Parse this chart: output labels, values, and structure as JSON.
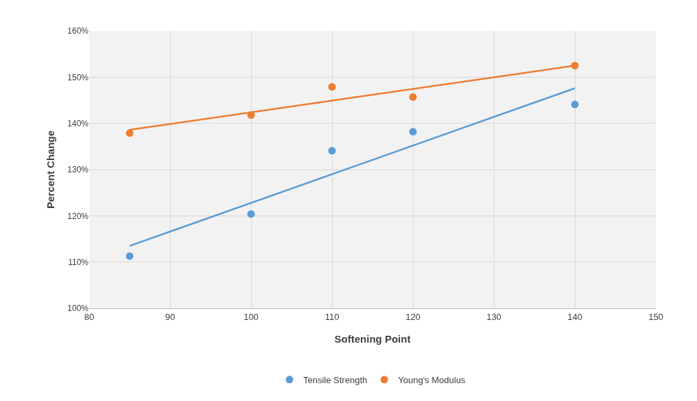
{
  "chart_data": {
    "type": "scatter",
    "xlabel": "Softening Point",
    "ylabel": "Percent Change",
    "xlim": [
      80,
      150
    ],
    "xticks": [
      80,
      90,
      100,
      110,
      120,
      130,
      140,
      150
    ],
    "ylim": [
      100,
      160
    ],
    "yticks": [
      {
        "value": 100,
        "label": "100%"
      },
      {
        "value": 110,
        "label": "110%"
      },
      {
        "value": 120,
        "label": "120%"
      },
      {
        "value": 130,
        "label": "130%"
      },
      {
        "value": 140,
        "label": "140%"
      },
      {
        "value": 150,
        "label": "150%"
      },
      {
        "value": 160,
        "label": "160%"
      }
    ],
    "grid": true,
    "legend": "bottom",
    "marker": "circle",
    "series": [
      {
        "name": "Tensile Strength",
        "color": "#5b9bd5",
        "x": [
          85,
          100,
          110,
          120,
          140
        ],
        "values": [
          111.3,
          120.4,
          134.1,
          138.2,
          144.1
        ]
      },
      {
        "name": "Young's Modulus",
        "color": "#ed7d31",
        "x": [
          85,
          100,
          110,
          120,
          140
        ],
        "values": [
          137.9,
          141.8,
          147.9,
          145.7,
          152.5
        ]
      },
      {
        "type": "line",
        "color": "#5b9bd5",
        "x": [
          85,
          140
        ],
        "values": [
          113.5,
          147.6
        ],
        "marker": "none"
      },
      {
        "type": "line",
        "color": "#ed7d31",
        "x": [
          85,
          140
        ],
        "values": [
          138.6,
          152.5
        ],
        "marker": "none"
      }
    ]
  }
}
